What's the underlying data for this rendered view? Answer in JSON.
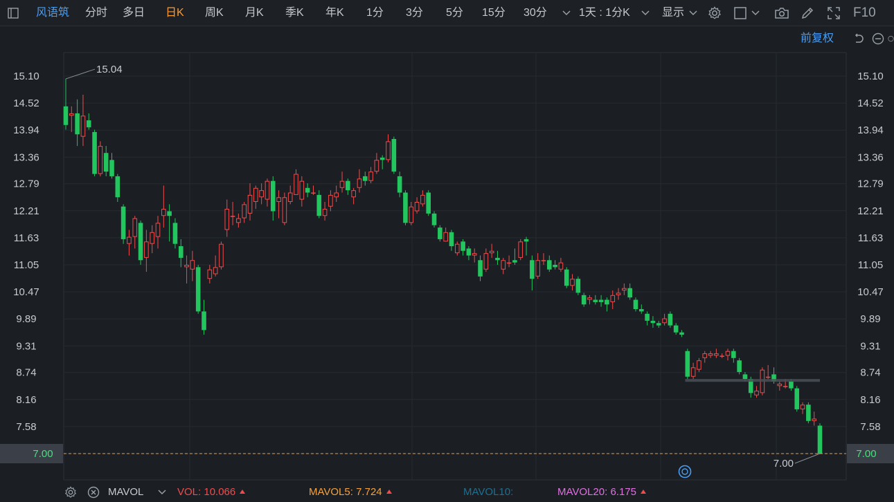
{
  "toolbar": {
    "stock_name": "风语筑",
    "tabs": [
      {
        "label": "分时"
      },
      {
        "label": "多日"
      },
      {
        "label": "日K"
      },
      {
        "label": "周K"
      },
      {
        "label": "月K"
      },
      {
        "label": "季K"
      },
      {
        "label": "年K"
      },
      {
        "label": "1分"
      },
      {
        "label": "3分"
      },
      {
        "label": "5分"
      },
      {
        "label": "15分"
      },
      {
        "label": "30分"
      }
    ],
    "active_tab": "日K",
    "period_select": "1天 : 1分K",
    "display_label": "显示",
    "f10_label": "F10"
  },
  "header": {
    "adjust_label": "前复权"
  },
  "footer": {
    "indicator_name": "MAVOL",
    "vol_label": "VOL:",
    "vol_value": "10.066",
    "mavol5_label": "MAVOL5:",
    "mavol5_value": "7.724",
    "mavol10_label": "MAVOL10:",
    "mavol20_label": "MAVOL20:",
    "mavol20_value": "6.175"
  },
  "colors": {
    "up": "#f24b4b",
    "down": "#22c55e",
    "active_tab": "#ff9a2e",
    "accent_blue": "#4a9cf0",
    "vol": "#f24b4b",
    "mavol5": "#f5a23c",
    "mavol10": "#1f6f8f",
    "mavol20": "#e070e0"
  },
  "chart_data": {
    "type": "candlestick",
    "title": "风语筑",
    "period": "日K",
    "y_ticks": [
      "15.10",
      "14.52",
      "13.94",
      "13.36",
      "12.79",
      "12.21",
      "11.63",
      "11.05",
      "10.47",
      "9.89",
      "9.31",
      "8.74",
      "8.16",
      "7.58",
      "7.00"
    ],
    "ylim": [
      7.0,
      15.1
    ],
    "current_price": "7.00",
    "annotations": {
      "high_label": "15.04",
      "low_label": "7.00"
    },
    "candles": [
      [
        14.45,
        14.05,
        15.04,
        13.95
      ],
      [
        14.25,
        14.3,
        14.45,
        13.9
      ],
      [
        14.3,
        13.85,
        14.6,
        13.6
      ],
      [
        13.8,
        14.25,
        14.7,
        13.6
      ],
      [
        14.15,
        14.0,
        14.3,
        13.95
      ],
      [
        13.9,
        13.0,
        13.95,
        12.95
      ],
      [
        13.0,
        13.6,
        13.7,
        12.95
      ],
      [
        13.45,
        13.05,
        13.6,
        12.95
      ],
      [
        13.3,
        12.95,
        13.45,
        12.9
      ],
      [
        12.95,
        12.5,
        13.0,
        12.4
      ],
      [
        12.3,
        11.6,
        12.35,
        11.5
      ],
      [
        11.5,
        11.65,
        11.8,
        11.25
      ],
      [
        11.65,
        12.05,
        12.1,
        11.4
      ],
      [
        11.95,
        11.15,
        12.0,
        11.05
      ],
      [
        11.2,
        11.55,
        11.8,
        10.9
      ],
      [
        11.5,
        11.75,
        11.9,
        11.3
      ],
      [
        11.65,
        11.95,
        12.1,
        11.4
      ],
      [
        12.1,
        12.25,
        12.75,
        11.85
      ],
      [
        12.2,
        12.1,
        12.35,
        11.55
      ],
      [
        11.95,
        11.5,
        12.05,
        11.4
      ],
      [
        11.45,
        11.2,
        11.6,
        11.0
      ],
      [
        11.0,
        11.05,
        11.25,
        10.65
      ],
      [
        10.95,
        11.15,
        11.35,
        10.7
      ],
      [
        11.0,
        10.05,
        11.05,
        10.0
      ],
      [
        10.05,
        9.65,
        10.3,
        9.55
      ],
      [
        10.75,
        10.95,
        11.05,
        10.65
      ],
      [
        10.85,
        11.0,
        11.25,
        10.8
      ],
      [
        11.0,
        11.5,
        11.55,
        10.95
      ],
      [
        11.8,
        12.25,
        12.45,
        11.65
      ],
      [
        12.1,
        12.1,
        12.4,
        11.9
      ],
      [
        11.95,
        12.05,
        12.15,
        11.85
      ],
      [
        12.05,
        12.35,
        12.4,
        11.95
      ],
      [
        12.15,
        12.55,
        12.8,
        12.0
      ],
      [
        12.4,
        12.7,
        12.75,
        12.25
      ],
      [
        12.5,
        12.65,
        12.8,
        12.35
      ],
      [
        12.45,
        12.85,
        12.9,
        12.3
      ],
      [
        12.85,
        12.2,
        12.95,
        12.0
      ],
      [
        12.4,
        12.5,
        12.65,
        12.05
      ],
      [
        11.95,
        12.5,
        12.6,
        11.9
      ],
      [
        12.4,
        12.6,
        12.75,
        12.35
      ],
      [
        12.55,
        13.0,
        13.1,
        12.55
      ],
      [
        12.45,
        12.85,
        12.95,
        12.3
      ],
      [
        12.7,
        12.6,
        12.8,
        12.5
      ],
      [
        12.6,
        12.6,
        12.75,
        12.55
      ],
      [
        12.55,
        12.1,
        12.65,
        12.05
      ],
      [
        12.1,
        12.25,
        12.4,
        12.0
      ],
      [
        12.3,
        12.55,
        12.65,
        12.2
      ],
      [
        12.5,
        12.6,
        12.75,
        12.4
      ],
      [
        12.7,
        12.85,
        13.05,
        12.6
      ],
      [
        12.85,
        12.65,
        12.9,
        12.55
      ],
      [
        12.5,
        12.65,
        12.7,
        12.35
      ],
      [
        12.7,
        12.9,
        13.1,
        12.6
      ],
      [
        12.95,
        12.85,
        13.05,
        12.75
      ],
      [
        12.85,
        13.05,
        13.15,
        12.8
      ],
      [
        13.05,
        13.3,
        13.45,
        13.0
      ],
      [
        13.35,
        13.3,
        13.4,
        13.1
      ],
      [
        13.3,
        13.7,
        13.85,
        13.25
      ],
      [
        13.75,
        13.05,
        13.8,
        13.0
      ],
      [
        12.95,
        12.6,
        13.05,
        12.5
      ],
      [
        12.6,
        11.95,
        12.65,
        11.9
      ],
      [
        11.95,
        12.3,
        12.4,
        11.9
      ],
      [
        12.2,
        12.4,
        12.5,
        12.15
      ],
      [
        12.35,
        12.55,
        12.65,
        12.3
      ],
      [
        12.6,
        12.15,
        12.65,
        12.1
      ],
      [
        12.15,
        11.9,
        12.2,
        11.85
      ],
      [
        11.85,
        11.6,
        11.9,
        11.55
      ],
      [
        11.55,
        11.75,
        11.85,
        11.55
      ],
      [
        11.75,
        11.45,
        11.8,
        11.35
      ],
      [
        11.3,
        11.5,
        11.55,
        11.25
      ],
      [
        11.55,
        11.35,
        11.6,
        11.25
      ],
      [
        11.4,
        11.25,
        11.45,
        11.15
      ],
      [
        11.25,
        11.3,
        11.4,
        11.1
      ],
      [
        11.15,
        10.8,
        11.25,
        10.7
      ],
      [
        10.95,
        11.3,
        11.4,
        10.9
      ],
      [
        11.3,
        11.35,
        11.5,
        11.2
      ],
      [
        11.2,
        11.15,
        11.35,
        11.05
      ],
      [
        10.95,
        11.15,
        11.2,
        10.85
      ],
      [
        11.1,
        11.1,
        11.25,
        11.0
      ],
      [
        11.15,
        11.1,
        11.4,
        11.05
      ],
      [
        11.2,
        11.55,
        11.6,
        11.15
      ],
      [
        11.6,
        11.55,
        11.65,
        11.25
      ],
      [
        11.15,
        10.75,
        11.25,
        10.5
      ],
      [
        10.8,
        11.15,
        11.3,
        10.75
      ],
      [
        11.15,
        11.15,
        11.3,
        11.05
      ],
      [
        11.15,
        10.95,
        11.25,
        10.9
      ],
      [
        11.05,
        11.0,
        11.15,
        10.95
      ],
      [
        10.95,
        11.1,
        11.2,
        10.9
      ],
      [
        10.95,
        10.6,
        11.0,
        10.55
      ],
      [
        10.6,
        10.75,
        10.85,
        10.5
      ],
      [
        10.75,
        10.45,
        10.8,
        10.4
      ],
      [
        10.4,
        10.2,
        10.45,
        10.15
      ],
      [
        10.3,
        10.35,
        10.4,
        10.2
      ],
      [
        10.3,
        10.25,
        10.4,
        10.2
      ],
      [
        10.3,
        10.25,
        10.4,
        10.15
      ],
      [
        10.3,
        10.2,
        10.35,
        10.05
      ],
      [
        10.25,
        10.4,
        10.5,
        10.1
      ],
      [
        10.4,
        10.45,
        10.55,
        10.3
      ],
      [
        10.5,
        10.55,
        10.65,
        10.4
      ],
      [
        10.55,
        10.35,
        10.65,
        10.3
      ],
      [
        10.3,
        10.1,
        10.35,
        10.05
      ],
      [
        10.1,
        10.05,
        10.2,
        10.0
      ],
      [
        10.0,
        9.85,
        10.05,
        9.75
      ],
      [
        9.85,
        9.8,
        9.95,
        9.7
      ],
      [
        9.8,
        9.75,
        9.85,
        9.7
      ],
      [
        9.8,
        9.9,
        10.0,
        9.75
      ],
      [
        10.0,
        9.75,
        10.05,
        9.7
      ],
      [
        9.75,
        9.6,
        9.8,
        9.55
      ],
      [
        9.6,
        9.55,
        9.65,
        9.5
      ],
      [
        9.2,
        8.65,
        9.25,
        8.6
      ],
      [
        8.65,
        8.85,
        8.95,
        8.6
      ],
      [
        8.8,
        9.0,
        9.05,
        8.75
      ],
      [
        9.05,
        9.15,
        9.2,
        8.95
      ],
      [
        9.1,
        9.15,
        9.2,
        9.05
      ],
      [
        9.1,
        9.15,
        9.25,
        9.05
      ],
      [
        9.1,
        9.1,
        9.15,
        9.05
      ],
      [
        9.1,
        9.2,
        9.25,
        9.0
      ],
      [
        9.2,
        9.05,
        9.25,
        8.95
      ],
      [
        9.0,
        8.75,
        9.05,
        8.7
      ],
      [
        8.7,
        8.6,
        8.75,
        8.55
      ],
      [
        8.6,
        8.3,
        8.65,
        8.2
      ],
      [
        8.25,
        8.35,
        8.45,
        8.2
      ],
      [
        8.3,
        8.8,
        8.85,
        8.25
      ],
      [
        8.65,
        8.65,
        8.9,
        8.6
      ],
      [
        8.7,
        8.55,
        8.85,
        8.5
      ],
      [
        8.45,
        8.5,
        8.55,
        8.35
      ],
      [
        8.45,
        8.45,
        8.6,
        8.4
      ],
      [
        8.55,
        8.4,
        8.6,
        8.35
      ],
      [
        8.4,
        7.95,
        8.45,
        7.9
      ],
      [
        7.95,
        8.05,
        8.1,
        7.85
      ],
      [
        8.05,
        7.7,
        8.1,
        7.65
      ],
      [
        7.7,
        7.75,
        7.9,
        7.6
      ],
      [
        7.6,
        7.0,
        7.65,
        7.0
      ]
    ]
  }
}
